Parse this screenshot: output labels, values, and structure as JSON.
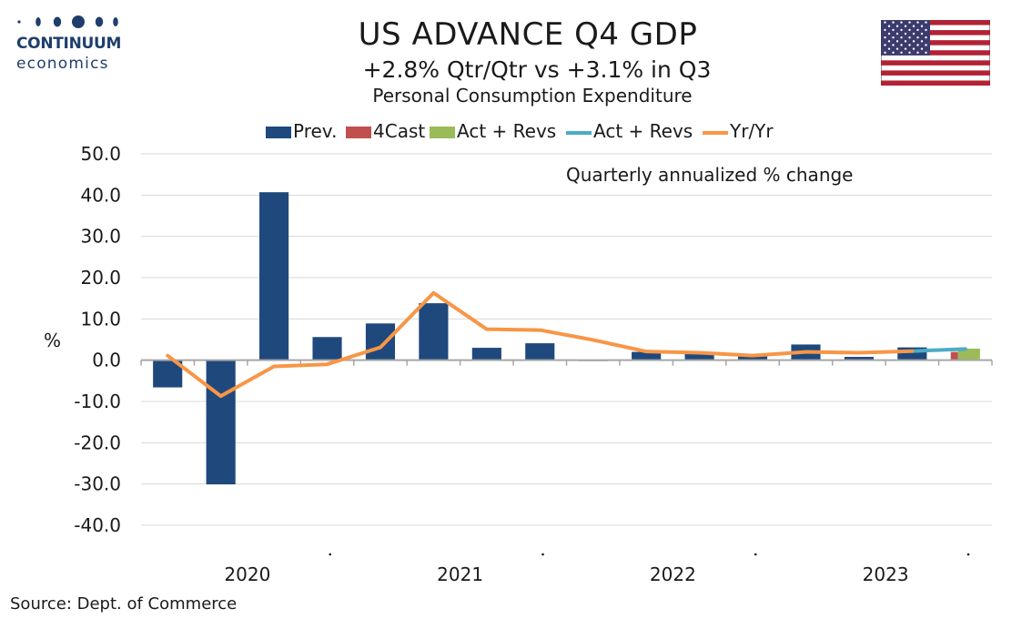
{
  "brand": {
    "name": "CONTINUUM",
    "sub": "economics"
  },
  "header": {
    "title": "US ADVANCE Q4  GDP",
    "subtitle": "+2.8% Qtr/Qtr vs +3.1% in Q3",
    "subsubtitle": "Personal Consumption Expenditure"
  },
  "source": "Source: Dept. of Commerce",
  "colors": {
    "prev": "#1f497d",
    "forecast": "#c0504d",
    "act_bar": "#9bbb59",
    "act_line": "#4bacc6",
    "yoy": "#f79646",
    "grid": "#d9d9d9",
    "axis": "#a6a6a6"
  },
  "chart_data": {
    "type": "bar",
    "note": "Quarterly annualized % change",
    "ylabel": "%",
    "ylim": [
      -40,
      50
    ],
    "yticks": [
      "50.0",
      "40.0",
      "30.0",
      "20.0",
      "10.0",
      "0.0",
      "-10.0",
      "-20.0",
      "-30.0",
      "-40.0"
    ],
    "year_labels": [
      "2020",
      "2021",
      "2022",
      "2023"
    ],
    "legend": [
      "Prev.",
      "4Cast",
      "Act + Revs",
      "Act + Revs",
      "Yr/Yr"
    ],
    "quarters": [
      "2020 Q1",
      "2020 Q2",
      "2020 Q3",
      "2020 Q4",
      "2021 Q1",
      "2021 Q2",
      "2021 Q3",
      "2021 Q4",
      "2022 Q1",
      "2022 Q2",
      "2022 Q3",
      "2022 Q4",
      "2023 Q1",
      "2023 Q2",
      "2023 Q3",
      "2023 Q4"
    ],
    "series": [
      {
        "name": "Prev.",
        "kind": "bar",
        "values": [
          -6.6,
          -30.1,
          40.7,
          5.6,
          8.9,
          13.8,
          3.0,
          4.1,
          0.0,
          2.0,
          1.6,
          1.2,
          3.8,
          0.8,
          3.1,
          null
        ]
      },
      {
        "name": "4Cast",
        "kind": "bar",
        "values": [
          null,
          null,
          null,
          null,
          null,
          null,
          null,
          null,
          null,
          null,
          null,
          null,
          null,
          null,
          null,
          2.0
        ]
      },
      {
        "name": "Act + Revs",
        "kind": "bar",
        "values": [
          null,
          null,
          null,
          null,
          null,
          null,
          null,
          null,
          null,
          null,
          null,
          null,
          null,
          null,
          null,
          2.8
        ]
      },
      {
        "name": "Act + Revs",
        "kind": "line",
        "values": [
          null,
          null,
          null,
          null,
          null,
          null,
          null,
          null,
          null,
          null,
          null,
          null,
          null,
          null,
          2.2,
          2.7
        ]
      },
      {
        "name": "Yr/Yr",
        "kind": "line",
        "values": [
          1.1,
          -8.7,
          -1.5,
          -1.0,
          3.1,
          16.3,
          7.5,
          7.3,
          4.9,
          2.1,
          1.8,
          1.1,
          2.0,
          1.8,
          2.2,
          null
        ]
      }
    ]
  }
}
